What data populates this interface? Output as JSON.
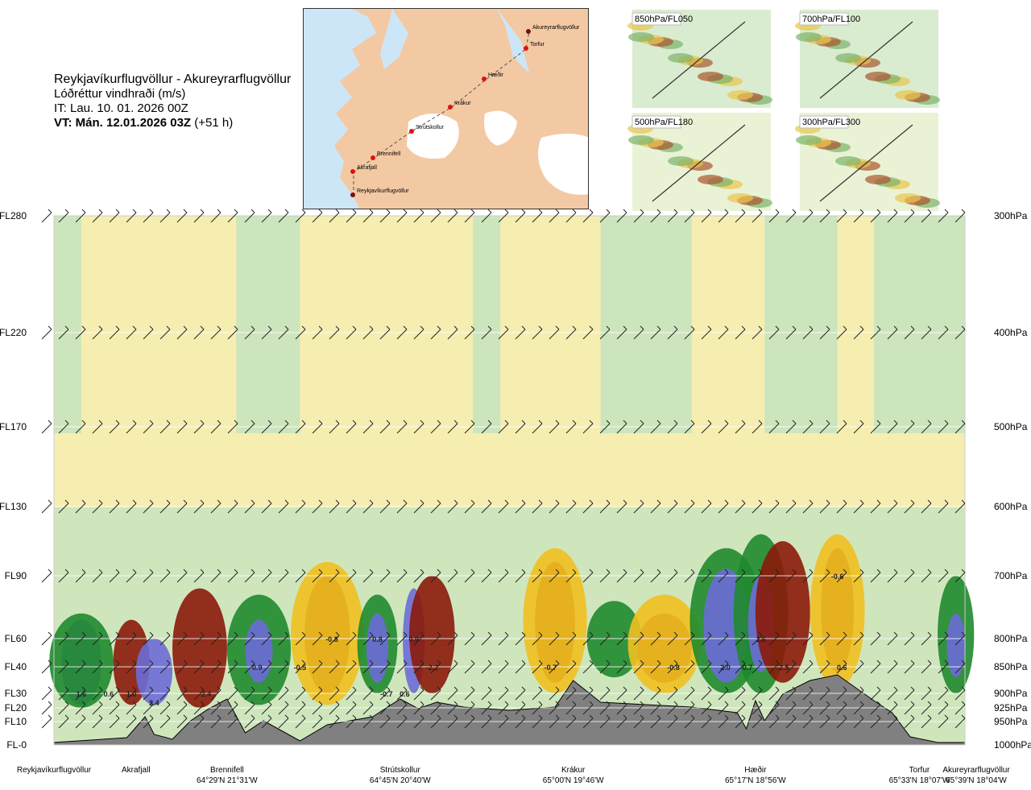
{
  "header": {
    "route": "Reykjavíkurflugvöllur - Akureyrarflugvöllur",
    "parameter": "Lóðréttur vindhraði (m/s)",
    "issue_time": "IT: Lau. 10. 01. 2026 00Z",
    "valid_time": "VT: Mán. 12.01.2026 03Z",
    "lead": "(+51 h)"
  },
  "map": {
    "waypoints": [
      "Akureyrarflugvöllur",
      "Torfur",
      "Hæðir",
      "Krákur",
      "Strútskollur",
      "Brennifell",
      "Akrafjall",
      "Reykjavíkurflugvöllur"
    ]
  },
  "thumbnails": [
    "850hPa/FL050",
    "700hPa/FL100",
    "500hPa/FL180",
    "300hPa/FL300"
  ],
  "colors": {
    "positive_high": "#8b1a0a",
    "positive_mid": "#f0c020",
    "near_zero": "#f5eeb0",
    "negative_low": "#c5e3c0",
    "negative_mid": "#1f8a2e",
    "negative_high": "#6b6bd6",
    "terrain": "#808080",
    "sea": "#cde6f7",
    "land": "#f3c9a3"
  },
  "chart_data": {
    "type": "heatmap",
    "title": "Lóðréttur vindhraði (m/s)",
    "left_axis_labels": [
      "FL280",
      "FL220",
      "FL170",
      "FL130",
      "FL90",
      "FL60",
      "FL40",
      "FL30",
      "FL20",
      "FL10",
      "FL-0"
    ],
    "right_axis_labels": [
      "300hPa",
      "400hPa",
      "500hPa",
      "600hPa",
      "700hPa",
      "800hPa",
      "850hPa",
      "900hPa",
      "925hPa",
      "950hPa",
      "1000hPa"
    ],
    "levels_hpa": [
      300,
      400,
      500,
      600,
      700,
      800,
      850,
      900,
      925,
      950,
      1000
    ],
    "x_locations": [
      {
        "name": "Reykjavíkurflugvöllur",
        "coord": "",
        "x": 0.0
      },
      {
        "name": "Akrafjall",
        "coord": "",
        "x": 0.09
      },
      {
        "name": "Brennifell",
        "coord": "64°29'N 21°31'W",
        "x": 0.19
      },
      {
        "name": "Strútskollur",
        "coord": "64°45'N 20°40'W",
        "x": 0.38
      },
      {
        "name": "Krákur",
        "coord": "65°00'N 19°46'W",
        "x": 0.57
      },
      {
        "name": "Hæðir",
        "coord": "65°17'N 18°56'W",
        "x": 0.77
      },
      {
        "name": "Torfur",
        "coord": "65°33'N 18°07'W",
        "x": 0.95
      },
      {
        "name": "Akureyrarflugvöllur",
        "coord": "65°39'N 18°04'W",
        "x": 1.0
      }
    ],
    "value_labels": [
      {
        "x": 0.03,
        "hpa": 900,
        "text": "1.6"
      },
      {
        "x": 0.06,
        "hpa": 900,
        "text": "0.6"
      },
      {
        "x": 0.085,
        "hpa": 900,
        "text": "1.0"
      },
      {
        "x": 0.11,
        "hpa": 915,
        "text": "2.4"
      },
      {
        "x": 0.167,
        "hpa": 900,
        "text": "2.4"
      },
      {
        "x": 0.223,
        "hpa": 850,
        "text": "0.9"
      },
      {
        "x": 0.27,
        "hpa": 850,
        "text": "-0.5"
      },
      {
        "x": 0.305,
        "hpa": 800,
        "text": "-0.8"
      },
      {
        "x": 0.355,
        "hpa": 800,
        "text": "0.8"
      },
      {
        "x": 0.365,
        "hpa": 900,
        "text": "-0.7"
      },
      {
        "x": 0.385,
        "hpa": 900,
        "text": "0.6"
      },
      {
        "x": 0.395,
        "hpa": 800,
        "text": "0.9"
      },
      {
        "x": 0.415,
        "hpa": 850,
        "text": "-2.2"
      },
      {
        "x": 0.545,
        "hpa": 850,
        "text": "-0.7"
      },
      {
        "x": 0.68,
        "hpa": 850,
        "text": "-0.8"
      },
      {
        "x": 0.737,
        "hpa": 850,
        "text": "2.0"
      },
      {
        "x": 0.76,
        "hpa": 850,
        "text": "-0.7"
      },
      {
        "x": 0.776,
        "hpa": 800,
        "text": "1.6"
      },
      {
        "x": 0.8,
        "hpa": 850,
        "text": "-2.5"
      },
      {
        "x": 0.86,
        "hpa": 700,
        "text": "-0.6"
      },
      {
        "x": 0.865,
        "hpa": 850,
        "text": "0.6"
      }
    ],
    "grid": true
  }
}
